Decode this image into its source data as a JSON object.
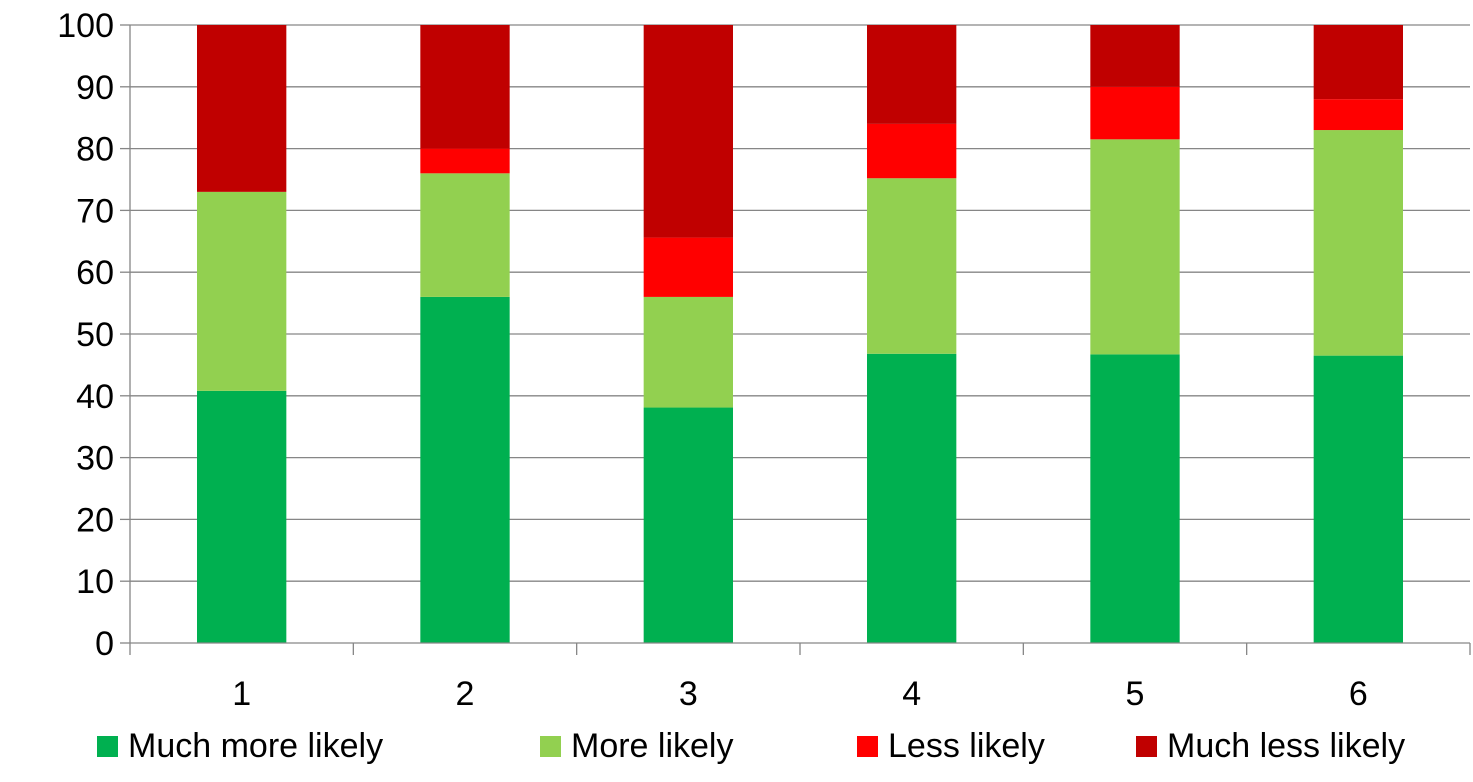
{
  "chart_data": {
    "type": "bar",
    "stacked": true,
    "title": "",
    "xlabel": "",
    "ylabel": "",
    "categories": [
      "1",
      "2",
      "3",
      "4",
      "5",
      "6"
    ],
    "ylim": [
      0,
      100
    ],
    "yticks": [
      "0",
      "10",
      "20",
      "30",
      "40",
      "50",
      "60",
      "70",
      "80",
      "90",
      "100"
    ],
    "grid": true,
    "legend_position": "bottom",
    "series": [
      {
        "name": "Much more likely",
        "color": "#00b050",
        "values": [
          40.8,
          56.0,
          38.1,
          46.8,
          46.7,
          46.5
        ]
      },
      {
        "name": "More likely",
        "color": "#92d050",
        "values": [
          32.2,
          20.0,
          17.9,
          28.4,
          34.8,
          36.5
        ]
      },
      {
        "name": "Less likely",
        "color": "#ff0000",
        "values": [
          0,
          4.0,
          9.6,
          8.8,
          8.5,
          5.0
        ]
      },
      {
        "name": "Much less likely",
        "color": "#c00000",
        "values": [
          27.0,
          20.0,
          34.4,
          16.0,
          10.0,
          12.0
        ]
      }
    ]
  }
}
